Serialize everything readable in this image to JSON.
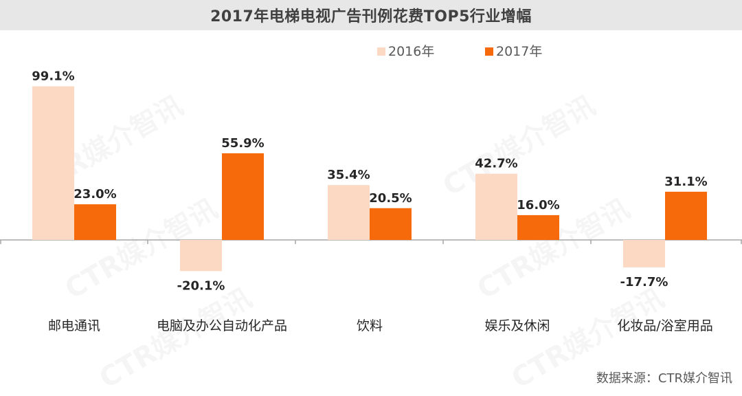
{
  "title": "2017年电梯电视广告刊例花费TOP5行业增幅",
  "source_note": "数据来源：CTR媒介智讯",
  "watermark_text": "CTR媒介智讯",
  "colors": {
    "series_2016": "#fbd9c2",
    "series_2017": "#f76a0c",
    "axis": "#a6a6a6",
    "text": "#262626"
  },
  "chart_data": {
    "type": "bar",
    "title": "2017年电梯电视广告刊例花费TOP5行业增幅",
    "categories": [
      "邮电通讯",
      "电脑及办公自动化产品",
      "饮料",
      "娱乐及休闲",
      "化妆品/浴室用品"
    ],
    "series": [
      {
        "name": "2016年",
        "values": [
          99.1,
          -20.1,
          35.4,
          42.7,
          -17.7
        ],
        "labels": [
          "99.1%",
          "-20.1%",
          "35.4%",
          "42.7%",
          "-17.7%"
        ]
      },
      {
        "name": "2017年",
        "values": [
          23.0,
          55.9,
          20.5,
          16.0,
          31.1
        ],
        "labels": [
          "23.0%",
          "55.9%",
          "20.5%",
          "16.0%",
          "31.1%"
        ]
      }
    ],
    "legend": "top-right",
    "grid": false,
    "xlabel": "",
    "ylabel": ""
  }
}
